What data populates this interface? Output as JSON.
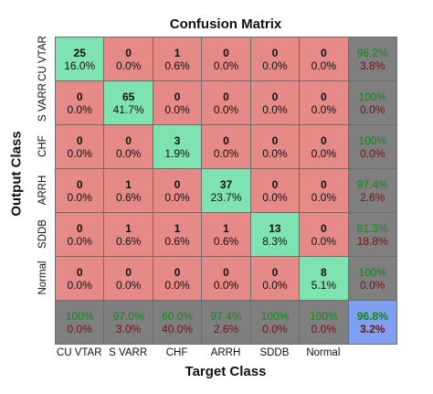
{
  "chart_data": {
    "type": "heatmap",
    "title": "Confusion Matrix",
    "xlabel": "Target Class",
    "ylabel": "Output Class",
    "classes": [
      "CU VTAR",
      "S VARR",
      "CHF",
      "ARRH",
      "SDDB",
      "Normal"
    ],
    "x_tick_labels": [
      "CU VTAR",
      "S VARR",
      "CHF",
      "ARRH",
      "SDDB",
      "Normal"
    ],
    "y_tick_labels": [
      "CU VTAR",
      "S VARR",
      "CHF",
      "ARRH",
      "SDDB",
      "Normal"
    ],
    "counts": [
      [
        25,
        0,
        1,
        0,
        0,
        0
      ],
      [
        0,
        65,
        0,
        0,
        0,
        0
      ],
      [
        0,
        0,
        3,
        0,
        0,
        0
      ],
      [
        0,
        1,
        0,
        37,
        0,
        0
      ],
      [
        0,
        1,
        1,
        1,
        13,
        0
      ],
      [
        0,
        0,
        0,
        0,
        0,
        8
      ]
    ],
    "percents": [
      [
        "16.0%",
        "0.0%",
        "0.6%",
        "0.0%",
        "0.0%",
        "0.0%"
      ],
      [
        "0.0%",
        "41.7%",
        "0.0%",
        "0.0%",
        "0.0%",
        "0.0%"
      ],
      [
        "0.0%",
        "0.0%",
        "1.9%",
        "0.0%",
        "0.0%",
        "0.0%"
      ],
      [
        "0.0%",
        "0.6%",
        "0.0%",
        "23.7%",
        "0.0%",
        "0.0%"
      ],
      [
        "0.0%",
        "0.6%",
        "0.6%",
        "0.6%",
        "8.3%",
        "0.0%"
      ],
      [
        "0.0%",
        "0.0%",
        "0.0%",
        "0.0%",
        "0.0%",
        "5.1%"
      ]
    ],
    "row_summary": [
      [
        "96.2%",
        "3.8%"
      ],
      [
        "100%",
        "0.0%"
      ],
      [
        "100%",
        "0.0%"
      ],
      [
        "97.4%",
        "2.6%"
      ],
      [
        "81.3%",
        "18.8%"
      ],
      [
        "100%",
        "0.0%"
      ]
    ],
    "col_summary": [
      [
        "100%",
        "0.0%"
      ],
      [
        "97.0%",
        "3.0%"
      ],
      [
        "60.0%",
        "40.0%"
      ],
      [
        "97.4%",
        "2.6%"
      ],
      [
        "100%",
        "0.0%"
      ],
      [
        "100%",
        "0.0%"
      ]
    ],
    "overall": [
      "96.8%",
      "3.2%"
    ],
    "colors": {
      "correct": "#7ee3b0",
      "incorrect": "#e58a86",
      "summary": "#7f7f7f",
      "overall": "#7f9ff0",
      "good_text": "#0f8a14",
      "bad_text": "#7a1010"
    }
  }
}
